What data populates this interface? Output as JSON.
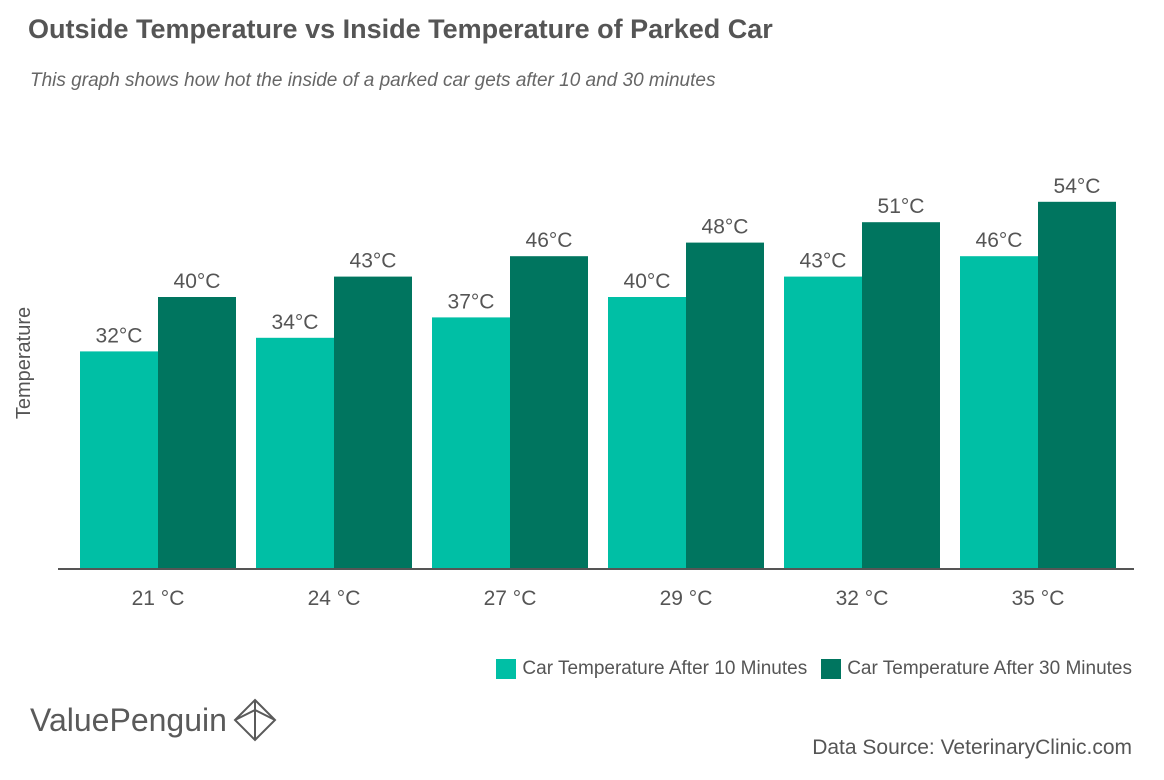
{
  "header": {
    "title": "Outside Temperature vs Inside Temperature of Parked Car",
    "subtitle": "This graph shows how hot the inside of a parked car gets after 10 and 30 minutes"
  },
  "chart_data": {
    "type": "bar",
    "title": "Outside Temperature vs Inside Temperature of Parked Car",
    "subtitle": "This graph shows how hot the inside of a parked car gets after 10 and 30 minutes",
    "xlabel": "",
    "ylabel": "Temperature",
    "categories": [
      "21 °C",
      "24 °C",
      "27 °C",
      "29 °C",
      "32 °C",
      "35 °C"
    ],
    "series": [
      {
        "name": "Car Temperature After 10 Minutes",
        "color": "#00bfa5",
        "values": [
          32,
          34,
          37,
          40,
          43,
          46
        ],
        "labels": [
          "32°C",
          "34°C",
          "37°C",
          "40°C",
          "43°C",
          "46°C"
        ]
      },
      {
        "name": "Car Temperature After 30 Minutes",
        "color": "#00755f",
        "values": [
          40,
          43,
          46,
          48,
          51,
          54
        ],
        "labels": [
          "40°C",
          "43°C",
          "46°C",
          "48°C",
          "51°C",
          "54°C"
        ]
      }
    ],
    "ylim": [
      0,
      60
    ],
    "grid": false,
    "legend_position": "bottom-right"
  },
  "brand": {
    "name": "ValuePenguin",
    "icon": "valuepenguin-logo-icon"
  },
  "footer": {
    "source": "Data Source: VeterinaryClinic.com"
  },
  "colors": {
    "text": "#555555",
    "axis": "#555555"
  }
}
